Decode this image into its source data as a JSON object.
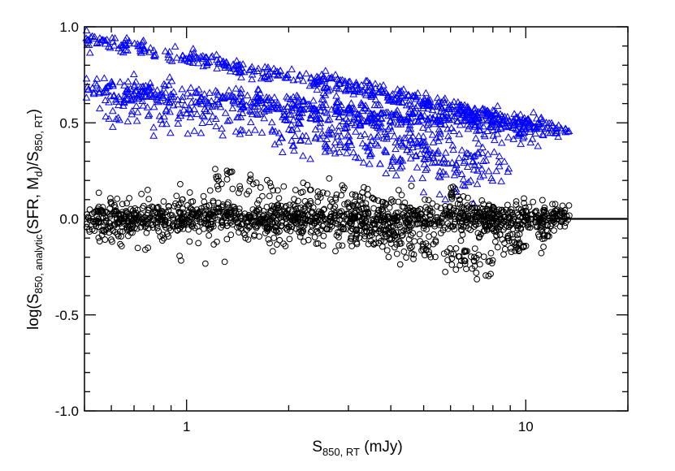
{
  "chart_data": {
    "type": "scatter",
    "title": "",
    "xlabel": {
      "base": "S",
      "sub": "850, RT",
      "tail": " (mJy)"
    },
    "ylabel": [
      {
        "t": "log(S",
        "sub": false
      },
      {
        "t": "850, analytic",
        "sub": true
      },
      {
        "t": "(SFR, M",
        "sub": false
      },
      {
        "t": "d",
        "sub": true
      },
      {
        "t": ")/S",
        "sub": false
      },
      {
        "t": "850, RT",
        "sub": true
      },
      {
        "t": ")",
        "sub": false
      }
    ],
    "x_scale": "log",
    "xlim": [
      0.5,
      20
    ],
    "ylim": [
      -1.0,
      1.0
    ],
    "x_ticks": [
      {
        "value": 1,
        "label": "1"
      },
      {
        "value": 10,
        "label": "10"
      }
    ],
    "y_ticks": [
      {
        "value": -1.0,
        "label": "-1.0"
      },
      {
        "value": -0.5,
        "label": "-0.5"
      },
      {
        "value": 0.0,
        "label": "0.0"
      },
      {
        "value": 0.5,
        "label": "0.5"
      },
      {
        "value": 1.0,
        "label": "1.0"
      }
    ],
    "reference_line": {
      "y": 0.0,
      "x_from": 12,
      "x_to": 20,
      "color": "#000000"
    },
    "grid": false,
    "series": [
      {
        "marker": "triangle",
        "color": "#0000ff",
        "bands": [
          {
            "x": [
              0.5,
              13.5
            ],
            "y": [
              0.94,
              0.46
            ],
            "scatter": 0.02,
            "count": 420
          },
          {
            "x": [
              0.5,
              12.0
            ],
            "y": [
              0.7,
              0.47
            ],
            "scatter": 0.025,
            "count": 300
          },
          {
            "x": [
              0.5,
              11.0
            ],
            "y": [
              0.66,
              0.44
            ],
            "scatter": 0.03,
            "count": 260
          },
          {
            "x": [
              0.55,
              9.0
            ],
            "y": [
              0.6,
              0.25
            ],
            "scatter": 0.06,
            "count": 240
          },
          {
            "x": [
              2.0,
              7.5
            ],
            "y": [
              0.55,
              0.22
            ],
            "scatter": 0.07,
            "count": 150
          },
          {
            "x": [
              2.5,
              9.5
            ],
            "y": [
              0.74,
              0.5
            ],
            "scatter": 0.02,
            "count": 90
          }
        ]
      },
      {
        "marker": "circle",
        "color": "#000000",
        "bands": [
          {
            "x": [
              0.5,
              13.5
            ],
            "y": [
              0.0,
              0.0
            ],
            "scatter": 0.035,
            "count": 900
          },
          {
            "x": [
              0.5,
              13.0
            ],
            "y": [
              0.05,
              0.02
            ],
            "scatter": 0.05,
            "count": 250
          },
          {
            "x": [
              0.55,
              12.0
            ],
            "y": [
              -0.07,
              -0.05
            ],
            "scatter": 0.06,
            "count": 250
          },
          {
            "x": [
              3.0,
              8.0
            ],
            "y": [
              -0.05,
              -0.25
            ],
            "scatter": 0.04,
            "count": 130
          },
          {
            "x": [
              1.2,
              4.5
            ],
            "y": [
              0.2,
              0.05
            ],
            "scatter": 0.04,
            "count": 90
          },
          {
            "x": [
              6.0,
              10.0
            ],
            "y": [
              0.12,
              -0.15
            ],
            "scatter": 0.04,
            "count": 90
          }
        ]
      }
    ]
  }
}
